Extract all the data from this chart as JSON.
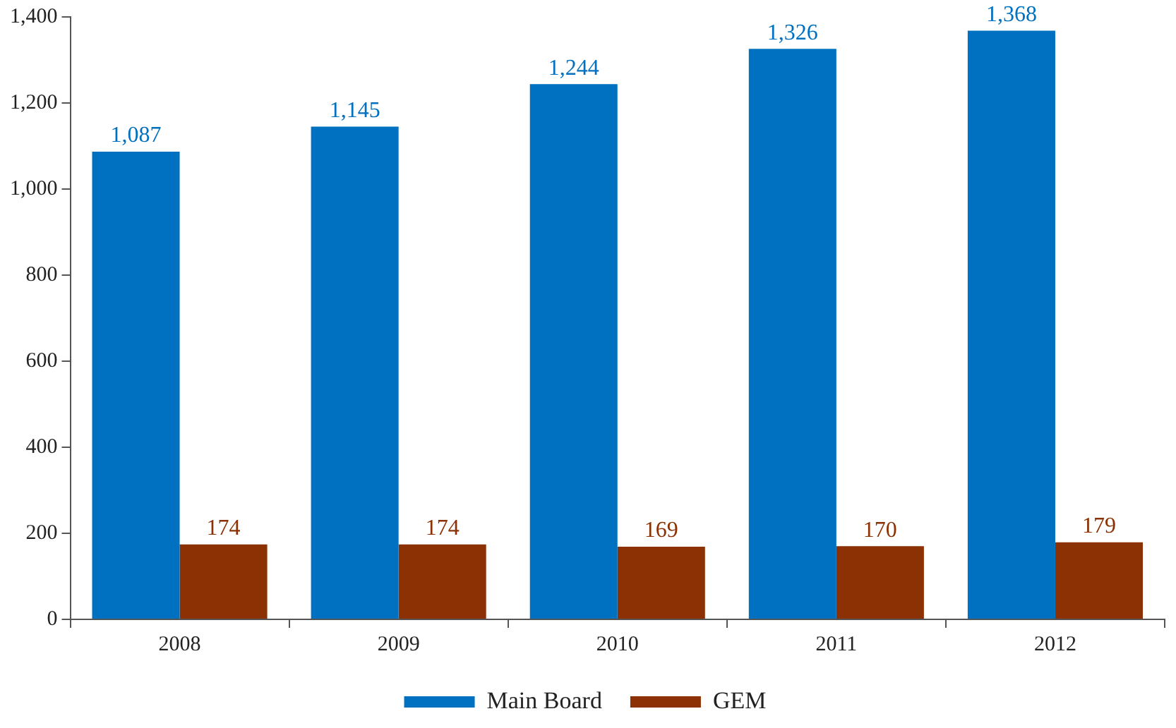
{
  "chart_data": {
    "type": "bar",
    "categories": [
      "2008",
      "2009",
      "2010",
      "2011",
      "2012"
    ],
    "series": [
      {
        "name": "Main Board",
        "color": "#0070c0",
        "values": [
          1087,
          1145,
          1244,
          1326,
          1368
        ],
        "value_labels": [
          "1,087",
          "1,145",
          "1,244",
          "1,326",
          "1,368"
        ]
      },
      {
        "name": "GEM",
        "color": "#8b3103",
        "values": [
          174,
          174,
          169,
          170,
          179
        ],
        "value_labels": [
          "174",
          "174",
          "169",
          "170",
          "179"
        ]
      }
    ],
    "ylim": [
      0,
      1400
    ],
    "yticks": [
      0,
      200,
      400,
      600,
      800,
      {
        "value": 1000,
        "label": "1,000"
      },
      {
        "value": 1200,
        "label": "1,200"
      },
      {
        "value": 1400,
        "label": "1,400"
      }
    ],
    "grid": false,
    "legend": "bottom"
  }
}
